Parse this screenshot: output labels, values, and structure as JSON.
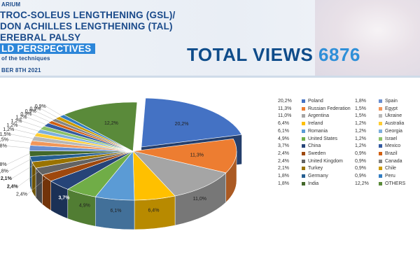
{
  "header": {
    "line0": "ARIUM",
    "line1": "TROC-SOLEUS LENGTHENING (GSL)/",
    "line2": "DON ACHILLES LENGTHENING (TAL)",
    "line3": "EREBRAL PALSY",
    "line4": "LD PERSPECTIVES",
    "line5": "of the techniques",
    "line6": "BER 8TH 2021",
    "total_label": "TOTAL VIEWS",
    "total_value": "6876"
  },
  "chart_data": {
    "type": "pie",
    "title": "",
    "categories": [
      "Poland",
      "Russian Federation",
      "Argentina",
      "Ireland",
      "Romania",
      "United States",
      "China",
      "Sweden",
      "United Kingdom",
      "Turkey",
      "Germany",
      "India",
      "Spain",
      "Egypt",
      "Ukraine",
      "Australia",
      "Georgia",
      "Israel",
      "Mexico",
      "Brazil",
      "Canada",
      "Chile",
      "Peru",
      "OTHERS"
    ],
    "values": [
      20.2,
      11.3,
      11.0,
      6.4,
      6.1,
      4.9,
      3.7,
      2.4,
      2.4,
      2.1,
      1.8,
      1.8,
      1.8,
      1.5,
      1.5,
      1.2,
      1.2,
      1.2,
      1.2,
      0.9,
      0.9,
      0.9,
      0.9,
      12.2
    ],
    "value_labels": [
      "20,2%",
      "11,3%",
      "11,0%",
      "6,4%",
      "6,1%",
      "4,9%",
      "3,7%",
      "2,4%",
      "2,4%",
      "2,1%",
      "1,8%",
      "1,8%",
      "1,8%",
      "1,5%",
      "1,5%",
      "1,2%",
      "1,2%",
      "1,2%",
      "1,2%",
      "0,9%",
      "0,9%",
      "0,9%",
      "0,9%",
      "12,2%"
    ],
    "slice_labels": [
      "20,2%",
      "11,3%",
      "11,0%",
      "6,4%",
      "6,1%",
      "4,9%",
      "3,7%",
      "2,4%",
      "2,4%",
      "2,1%",
      "1,8%",
      "1,8%",
      "1,8%",
      "1,5%",
      "1,5%",
      "1,2%",
      "1,2%",
      "1,2%",
      "1,2%",
      "0,9%",
      "0,9%",
      "0,9%",
      "0,9%",
      "12,2%"
    ],
    "colors": [
      "#4472c4",
      "#ed7d31",
      "#a5a5a5",
      "#ffc000",
      "#5b9bd5",
      "#70ad47",
      "#264478",
      "#9e480e",
      "#636363",
      "#997300",
      "#255e91",
      "#43682b",
      "#698ed0",
      "#f1975a",
      "#b7b7b7",
      "#ffcd33",
      "#7cafdd",
      "#8cc168",
      "#335aa1",
      "#d26012",
      "#848484",
      "#cc9a00",
      "#327dc2",
      "#5a8a3a"
    ],
    "legend_position": "right",
    "style": "3d"
  }
}
